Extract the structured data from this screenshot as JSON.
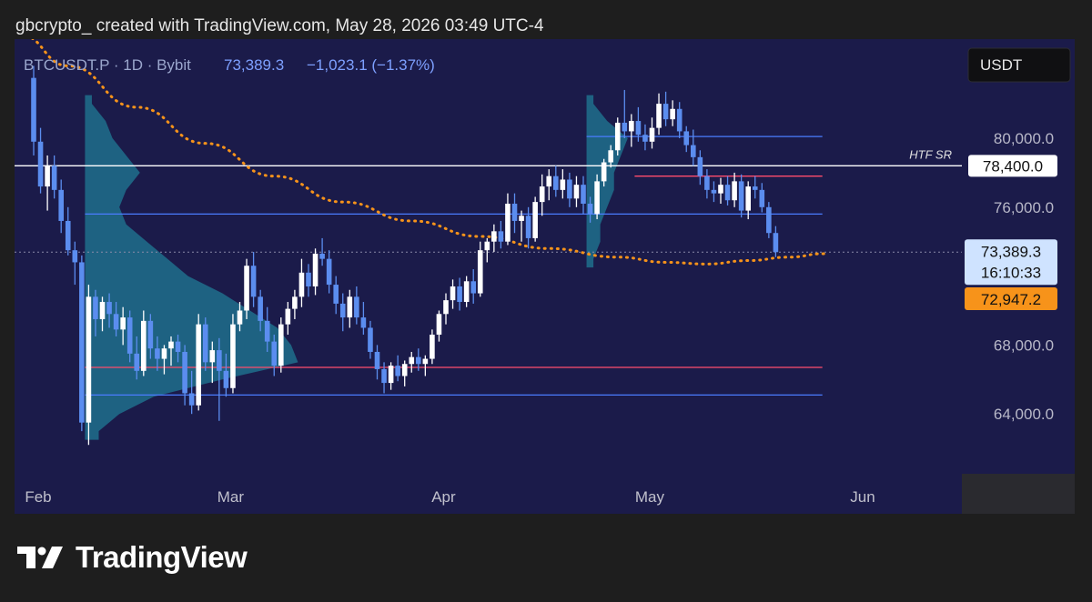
{
  "header": {
    "credit": "gbcrypto_ created with TradingView.com, May 28, 2026 03:49 UTC-4"
  },
  "brand": {
    "name": "TradingView",
    "logo_icon": "tradingview-logo-icon"
  },
  "colors": {
    "background": "#1b1b4a",
    "up": "#ffffff",
    "down": "#5b8def",
    "ma": "#f7931a",
    "support_blue": "#4a7cff",
    "support_red": "#ff4d6d",
    "profile": "#1e6e8c",
    "htf": "#ffffff",
    "price_box": "#cfe3ff",
    "ma_box": "#f7931a"
  },
  "chart_data": {
    "type": "candlestick",
    "symbol": "BTCUSDT.P",
    "interval": "1D",
    "exchange": "Bybit",
    "last": "73,389.3",
    "change": "−1,023.1 (−1.37%)",
    "currency": "USDT",
    "ylim": [
      62000,
      84000
    ],
    "y_ticks": [
      {
        "value": 80000,
        "label": "80,000.0"
      },
      {
        "value": 76000,
        "label": "76,000.0"
      },
      {
        "value": 68000,
        "label": "68,000.0"
      },
      {
        "value": 64000,
        "label": "64,000.0"
      }
    ],
    "x_labels": [
      {
        "day": 0,
        "label": "Feb"
      },
      {
        "day": 28,
        "label": "Mar"
      },
      {
        "day": 59,
        "label": "Apr"
      },
      {
        "day": 89,
        "label": "May"
      },
      {
        "day": 120,
        "label": "Jun"
      }
    ],
    "price_label": {
      "value": 73389.3,
      "label": "73,389.3",
      "countdown": "16:10:33"
    },
    "ma_label": {
      "value": 72947.2,
      "label": "72,947.2"
    },
    "htf_sr": {
      "value": 78400,
      "label": "78,400.0",
      "text": "HTF SR"
    },
    "levels": [
      {
        "value": 80100,
        "color": "blue",
        "from_day": 81,
        "to_day": 114
      },
      {
        "value": 77800,
        "color": "red",
        "from_day": 88,
        "to_day": 114
      },
      {
        "value": 75600,
        "color": "blue",
        "from_day": 8,
        "to_day": 114
      },
      {
        "value": 66700,
        "color": "red",
        "from_day": 8,
        "to_day": 114
      },
      {
        "value": 65100,
        "color": "blue",
        "from_day": 8,
        "to_day": 114
      }
    ],
    "moving_average": [
      [
        -2,
        86000
      ],
      [
        5,
        84200
      ],
      [
        15,
        81800
      ],
      [
        25,
        79700
      ],
      [
        35,
        77800
      ],
      [
        45,
        76300
      ],
      [
        55,
        75200
      ],
      [
        65,
        74300
      ],
      [
        75,
        73600
      ],
      [
        85,
        73100
      ],
      [
        92,
        72800
      ],
      [
        98,
        72700
      ],
      [
        104,
        72900
      ],
      [
        110,
        73100
      ],
      [
        115,
        73300
      ]
    ],
    "volume_profiles": [
      {
        "from_day": 8,
        "max_width_days": 31,
        "bins": [
          [
            82000,
            1
          ],
          [
            81000,
            3
          ],
          [
            80000,
            4
          ],
          [
            79000,
            6
          ],
          [
            78000,
            8
          ],
          [
            77000,
            6
          ],
          [
            76000,
            5
          ],
          [
            75000,
            6
          ],
          [
            74000,
            9
          ],
          [
            73000,
            12
          ],
          [
            72000,
            15
          ],
          [
            71000,
            20
          ],
          [
            70000,
            24
          ],
          [
            69000,
            28
          ],
          [
            68000,
            30
          ],
          [
            67000,
            31
          ],
          [
            66000,
            20
          ],
          [
            65000,
            10
          ],
          [
            64000,
            5
          ],
          [
            63000,
            2
          ]
        ]
      },
      {
        "from_day": 81,
        "max_width_days": 6,
        "bins": [
          [
            82000,
            1
          ],
          [
            81000,
            3
          ],
          [
            80000,
            6
          ],
          [
            79000,
            5
          ],
          [
            78000,
            4
          ],
          [
            77000,
            4
          ],
          [
            76000,
            3
          ],
          [
            75000,
            2
          ],
          [
            74000,
            2
          ],
          [
            73000,
            1
          ]
        ]
      }
    ],
    "candles": [
      [
        0,
        83500,
        84200,
        79000,
        79800
      ],
      [
        1,
        79800,
        80600,
        76800,
        77200
      ],
      [
        2,
        77200,
        79000,
        75800,
        78400
      ],
      [
        3,
        78400,
        79000,
        76500,
        77000
      ],
      [
        4,
        77000,
        77600,
        74500,
        75200
      ],
      [
        5,
        75200,
        76000,
        73200,
        73500
      ],
      [
        6,
        73500,
        74000,
        71500,
        72800
      ],
      [
        7,
        72800,
        73200,
        63000,
        63500
      ],
      [
        8,
        63500,
        71500,
        62200,
        70800
      ],
      [
        9,
        70800,
        71200,
        68500,
        69500
      ],
      [
        10,
        69500,
        70800,
        68800,
        70500
      ],
      [
        11,
        70500,
        71000,
        69000,
        69800
      ],
      [
        12,
        69800,
        70500,
        68500,
        68900
      ],
      [
        13,
        68900,
        70200,
        68000,
        69600
      ],
      [
        14,
        69600,
        70000,
        67000,
        67500
      ],
      [
        15,
        67500,
        68500,
        66000,
        66500
      ],
      [
        16,
        66500,
        70000,
        66200,
        69400
      ],
      [
        17,
        69400,
        69800,
        67200,
        67800
      ],
      [
        18,
        67800,
        68500,
        66500,
        67200
      ],
      [
        19,
        67200,
        68000,
        66300,
        67800
      ],
      [
        20,
        67800,
        68500,
        66800,
        68200
      ],
      [
        21,
        68200,
        68600,
        67000,
        67600
      ],
      [
        22,
        67600,
        68000,
        64500,
        65200
      ],
      [
        23,
        65200,
        66500,
        64000,
        64500
      ],
      [
        24,
        64500,
        69800,
        64200,
        69200
      ],
      [
        25,
        69200,
        69600,
        66500,
        67000
      ],
      [
        26,
        67000,
        68200,
        65800,
        67700
      ],
      [
        27,
        67700,
        68400,
        63600,
        66500
      ],
      [
        28,
        66500,
        67500,
        65000,
        65500
      ],
      [
        29,
        65500,
        69800,
        65200,
        69200
      ],
      [
        30,
        69200,
        70500,
        68800,
        70000
      ],
      [
        31,
        70000,
        73000,
        69500,
        72600
      ],
      [
        32,
        72600,
        73400,
        70200,
        70800
      ],
      [
        33,
        70800,
        71200,
        68800,
        69400
      ],
      [
        34,
        69400,
        70200,
        67600,
        68200
      ],
      [
        35,
        68200,
        68600,
        66200,
        66800
      ],
      [
        36,
        66800,
        69600,
        66400,
        69200
      ],
      [
        37,
        69200,
        70500,
        68600,
        70100
      ],
      [
        38,
        70100,
        71200,
        69500,
        70800
      ],
      [
        39,
        70800,
        73000,
        70200,
        72200
      ],
      [
        40,
        72200,
        72700,
        70800,
        71400
      ],
      [
        41,
        71400,
        73600,
        70900,
        73300
      ],
      [
        42,
        73300,
        74200,
        72600,
        73000
      ],
      [
        43,
        73000,
        73500,
        71000,
        71500
      ],
      [
        44,
        71500,
        72000,
        69800,
        70400
      ],
      [
        45,
        70400,
        71000,
        68800,
        69600
      ],
      [
        46,
        69600,
        71200,
        69000,
        70800
      ],
      [
        47,
        70800,
        71400,
        69200,
        69600
      ],
      [
        48,
        69600,
        70500,
        68600,
        69000
      ],
      [
        49,
        69000,
        69400,
        67200,
        67600
      ],
      [
        50,
        67600,
        68000,
        66000,
        66600
      ],
      [
        51,
        66600,
        67000,
        65200,
        65800
      ],
      [
        52,
        65800,
        67000,
        65400,
        66800
      ],
      [
        53,
        66800,
        67400,
        65900,
        66200
      ],
      [
        54,
        66200,
        67100,
        65600,
        66900
      ],
      [
        55,
        66900,
        67600,
        66400,
        67300
      ],
      [
        56,
        67300,
        67800,
        66500,
        66900
      ],
      [
        57,
        66900,
        67400,
        66200,
        67200
      ],
      [
        58,
        67200,
        68900,
        66900,
        68600
      ],
      [
        59,
        68600,
        70000,
        68200,
        69800
      ],
      [
        60,
        69800,
        71000,
        69200,
        70600
      ],
      [
        61,
        70600,
        71800,
        70100,
        71400
      ],
      [
        62,
        71400,
        71900,
        70000,
        70500
      ],
      [
        63,
        70500,
        72000,
        70200,
        71700
      ],
      [
        64,
        71700,
        72400,
        70400,
        71000
      ],
      [
        65,
        71000,
        74000,
        70800,
        73500
      ],
      [
        66,
        73500,
        74200,
        72800,
        74000
      ],
      [
        67,
        74000,
        75000,
        73400,
        74600
      ],
      [
        68,
        74600,
        75200,
        73600,
        74000
      ],
      [
        69,
        74000,
        76800,
        73800,
        76200
      ],
      [
        70,
        76200,
        76800,
        74500,
        75200
      ],
      [
        71,
        75200,
        75800,
        74000,
        75500
      ],
      [
        72,
        75500,
        76000,
        73600,
        74200
      ],
      [
        73,
        74200,
        76600,
        74000,
        76300
      ],
      [
        74,
        76300,
        77900,
        75500,
        77200
      ],
      [
        75,
        77200,
        78200,
        76400,
        77800
      ],
      [
        76,
        77800,
        78400,
        76600,
        77000
      ],
      [
        77,
        77000,
        78200,
        76500,
        77600
      ],
      [
        78,
        77600,
        78000,
        76000,
        76500
      ],
      [
        79,
        76500,
        77800,
        76000,
        77300
      ],
      [
        80,
        77300,
        77800,
        75600,
        76200
      ],
      [
        81,
        76200,
        76600,
        75100,
        75600
      ],
      [
        82,
        75600,
        77900,
        75300,
        77500
      ],
      [
        83,
        77500,
        78800,
        77200,
        78600
      ],
      [
        84,
        78600,
        79600,
        78300,
        79300
      ],
      [
        85,
        79300,
        81200,
        79000,
        80900
      ],
      [
        86,
        80900,
        82800,
        80000,
        80400
      ],
      [
        87,
        80400,
        81400,
        79500,
        81000
      ],
      [
        88,
        81000,
        81800,
        79800,
        80200
      ],
      [
        89,
        80200,
        80800,
        79300,
        79800
      ],
      [
        90,
        79800,
        81200,
        79400,
        80600
      ],
      [
        91,
        80600,
        82600,
        80200,
        82000
      ],
      [
        92,
        82000,
        82700,
        80700,
        81100
      ],
      [
        93,
        81100,
        82200,
        80700,
        81700
      ],
      [
        94,
        81700,
        82100,
        80000,
        80400
      ],
      [
        95,
        80400,
        80700,
        79200,
        79600
      ],
      [
        96,
        79600,
        80500,
        78400,
        78900
      ],
      [
        97,
        78900,
        79300,
        77300,
        77800
      ],
      [
        98,
        77800,
        78200,
        76500,
        77000
      ],
      [
        99,
        77000,
        77500,
        76300,
        76800
      ],
      [
        100,
        76800,
        77700,
        76200,
        77300
      ],
      [
        101,
        77300,
        77800,
        76100,
        76400
      ],
      [
        102,
        76400,
        78000,
        76000,
        77500
      ],
      [
        103,
        77500,
        77900,
        75400,
        75800
      ],
      [
        104,
        75800,
        77500,
        75300,
        77200
      ],
      [
        105,
        77200,
        77800,
        76500,
        77000
      ],
      [
        106,
        77000,
        77400,
        75700,
        76000
      ],
      [
        107,
        76000,
        76300,
        74200,
        74500
      ],
      [
        108,
        74500,
        74900,
        73100,
        73389
      ]
    ]
  }
}
